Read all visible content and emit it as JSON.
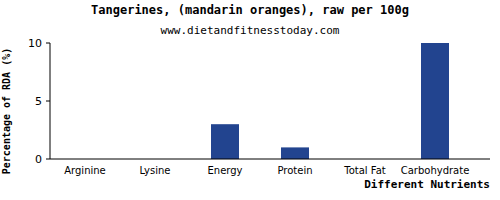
{
  "chart_data": {
    "type": "bar",
    "title": "Tangerines, (mandarin oranges), raw per 100g",
    "subtitle": "www.dietandfitnesstoday.com",
    "x_label": "Different Nutrients",
    "y_label": "Percentage of RDA (%)",
    "categories": [
      "Arginine",
      "Lysine",
      "Energy",
      "Protein",
      "Total Fat",
      "Carbohydrate"
    ],
    "values": [
      0,
      0,
      3,
      1,
      0,
      10
    ],
    "color": "#22448f",
    "ylim": [
      0,
      10
    ],
    "yticks": [
      0,
      5,
      10
    ],
    "grid": false
  }
}
